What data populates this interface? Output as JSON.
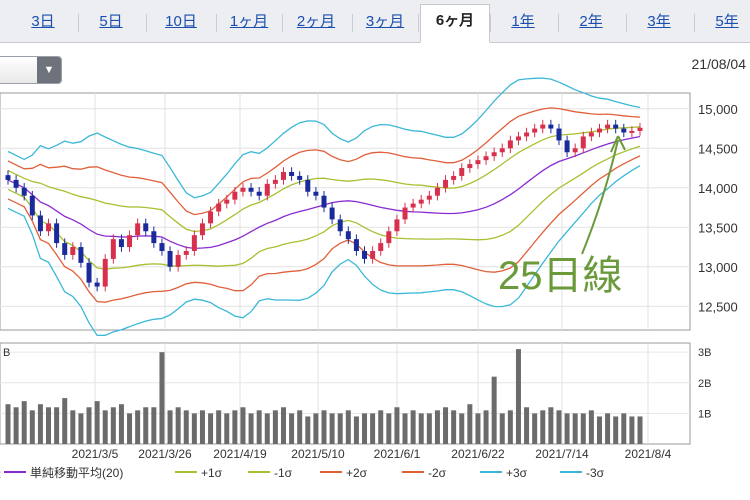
{
  "tabs": [
    {
      "label": "3日",
      "active": false
    },
    {
      "label": "5日",
      "active": false
    },
    {
      "label": "10日",
      "active": false
    },
    {
      "label": "1ヶ月",
      "active": false
    },
    {
      "label": "2ヶ月",
      "active": false
    },
    {
      "label": "3ヶ月",
      "active": false
    },
    {
      "label": "6ヶ月",
      "active": true
    },
    {
      "label": "1年",
      "active": false
    },
    {
      "label": "2年",
      "active": false
    },
    {
      "label": "3年",
      "active": false
    },
    {
      "label": "5年",
      "active": false
    }
  ],
  "toolbar": {
    "select_value": "",
    "caret_icon": "chevron-down-icon",
    "date": "21/08/04"
  },
  "annotation": {
    "label": "25日線",
    "color": "#6a9a3a"
  },
  "chart_data": {
    "type": "candlestick",
    "price_axis": {
      "ticks": [
        "15,000",
        "14,500",
        "14,000",
        "13,500",
        "13,000",
        "12,500"
      ],
      "range": [
        12200,
        15200
      ]
    },
    "volume_axis": {
      "ticks": [
        "3B",
        "2B",
        "1B"
      ],
      "unit_label": "B",
      "range": [
        0,
        3.3
      ]
    },
    "x_labels": [
      "2021/3/5",
      "2021/3/26",
      "2021/4/19",
      "2021/5/10",
      "2021/6/1",
      "2021/6/22",
      "2021/7/14",
      "2021/8/4"
    ],
    "legend": [
      {
        "label": "単純移動平均(20)",
        "color": "#8a2bd0"
      },
      {
        "label": "+1σ",
        "color": "#a8c030"
      },
      {
        "label": "-1σ",
        "color": "#a8c030"
      },
      {
        "label": "+2σ",
        "color": "#e0603a"
      },
      {
        "label": "-2σ",
        "color": "#e0603a"
      },
      {
        "label": "+3σ",
        "color": "#3ab8d8"
      },
      {
        "label": "-3σ",
        "color": "#3ab8d8"
      }
    ],
    "colors": {
      "up": "#d8304c",
      "down": "#1a2a9a",
      "volume": "#6b6b6b"
    },
    "closes": [
      14100,
      14000,
      13900,
      13650,
      13450,
      13550,
      13300,
      13150,
      13250,
      13050,
      12800,
      12750,
      13100,
      13350,
      13250,
      13400,
      13550,
      13450,
      13300,
      13200,
      13000,
      13150,
      13200,
      13400,
      13550,
      13700,
      13800,
      13850,
      13950,
      14000,
      13950,
      13900,
      14050,
      14100,
      14200,
      14150,
      14100,
      13950,
      13900,
      13750,
      13600,
      13450,
      13350,
      13200,
      13100,
      13200,
      13300,
      13450,
      13600,
      13750,
      13800,
      13850,
      13900,
      14000,
      14100,
      14150,
      14250,
      14300,
      14350,
      14400,
      14450,
      14500,
      14600,
      14650,
      14700,
      14750,
      14800,
      14750,
      14600,
      14450,
      14500,
      14650,
      14700,
      14750,
      14800,
      14750,
      14700,
      14720,
      14760
    ],
    "volumes": [
      1.3,
      1.2,
      1.4,
      1.1,
      1.3,
      1.2,
      1.2,
      1.5,
      1.1,
      1.0,
      1.2,
      1.4,
      1.1,
      1.2,
      1.3,
      1.0,
      1.1,
      1.2,
      1.2,
      3.0,
      1.1,
      1.2,
      1.1,
      1.0,
      1.1,
      1.0,
      1.1,
      1.0,
      1.1,
      1.2,
      1.0,
      1.1,
      1.0,
      1.1,
      1.2,
      1.0,
      1.1,
      0.9,
      1.0,
      1.1,
      1.0,
      1.0,
      1.1,
      0.9,
      1.0,
      1.0,
      1.1,
      1.0,
      1.2,
      1.0,
      1.1,
      1.0,
      1.0,
      1.1,
      1.2,
      1.1,
      1.0,
      1.3,
      1.0,
      1.1,
      2.2,
      1.0,
      1.1,
      3.1,
      1.2,
      1.0,
      1.1,
      1.2,
      1.1,
      1.0,
      1.0,
      1.0,
      1.1,
      0.9,
      1.0,
      0.9,
      1.0,
      0.9,
      0.9
    ]
  }
}
